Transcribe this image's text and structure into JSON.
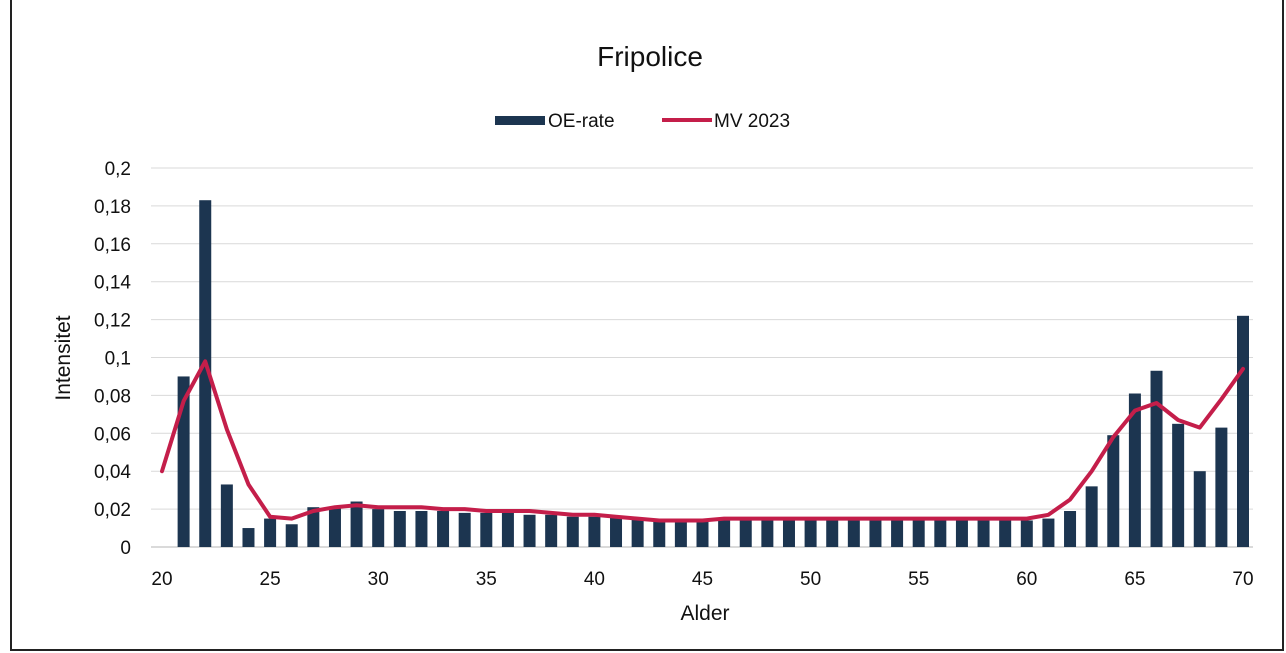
{
  "chart_data": {
    "type": "bar",
    "title": "Fripolice",
    "xlabel": "Alder",
    "ylabel": "Intensitet",
    "xlim": [
      20,
      70
    ],
    "ylim": [
      0,
      0.2
    ],
    "x_ticks": [
      "20",
      "25",
      "30",
      "35",
      "40",
      "45",
      "50",
      "55",
      "60",
      "65",
      "70"
    ],
    "y_ticks": [
      "0",
      "0,02",
      "0,04",
      "0,06",
      "0,08",
      "0,1",
      "0,12",
      "0,14",
      "0,16",
      "0,18",
      "0,2"
    ],
    "grid": true,
    "legend_position": "top-center",
    "series": [
      {
        "name": "OE-rate",
        "kind": "bar",
        "color": "#1c3550",
        "x": [
          21,
          22,
          23,
          24,
          25,
          26,
          27,
          28,
          29,
          30,
          31,
          32,
          33,
          34,
          35,
          36,
          37,
          38,
          39,
          40,
          41,
          42,
          43,
          44,
          45,
          46,
          47,
          48,
          49,
          50,
          51,
          52,
          53,
          54,
          55,
          56,
          57,
          58,
          59,
          60,
          61,
          62,
          63,
          64,
          65,
          66,
          67,
          68,
          69,
          70
        ],
        "values": [
          0.09,
          0.183,
          0.033,
          0.01,
          0.015,
          0.012,
          0.021,
          0.021,
          0.024,
          0.02,
          0.019,
          0.019,
          0.019,
          0.018,
          0.018,
          0.018,
          0.017,
          0.017,
          0.016,
          0.016,
          0.016,
          0.015,
          0.014,
          0.014,
          0.014,
          0.015,
          0.015,
          0.015,
          0.015,
          0.015,
          0.015,
          0.014,
          0.014,
          0.014,
          0.014,
          0.014,
          0.014,
          0.014,
          0.014,
          0.014,
          0.015,
          0.019,
          0.032,
          0.059,
          0.081,
          0.093,
          0.065,
          0.04,
          0.063,
          0.122
        ]
      },
      {
        "name": "MV 2023",
        "kind": "line",
        "color": "#c41e4a",
        "x": [
          20,
          21,
          22,
          23,
          24,
          25,
          26,
          27,
          28,
          29,
          30,
          31,
          32,
          33,
          34,
          35,
          36,
          37,
          38,
          39,
          40,
          41,
          42,
          43,
          44,
          45,
          46,
          47,
          48,
          49,
          50,
          51,
          52,
          53,
          54,
          55,
          56,
          57,
          58,
          59,
          60,
          61,
          62,
          63,
          64,
          65,
          66,
          67,
          68,
          69,
          70
        ],
        "values": [
          0.04,
          0.077,
          0.098,
          0.062,
          0.033,
          0.016,
          0.015,
          0.019,
          0.021,
          0.022,
          0.021,
          0.021,
          0.021,
          0.02,
          0.02,
          0.019,
          0.019,
          0.019,
          0.018,
          0.017,
          0.017,
          0.016,
          0.015,
          0.014,
          0.014,
          0.014,
          0.015,
          0.015,
          0.015,
          0.015,
          0.015,
          0.015,
          0.015,
          0.015,
          0.015,
          0.015,
          0.015,
          0.015,
          0.015,
          0.015,
          0.015,
          0.017,
          0.025,
          0.04,
          0.058,
          0.072,
          0.076,
          0.067,
          0.063,
          0.078,
          0.094
        ]
      }
    ]
  }
}
